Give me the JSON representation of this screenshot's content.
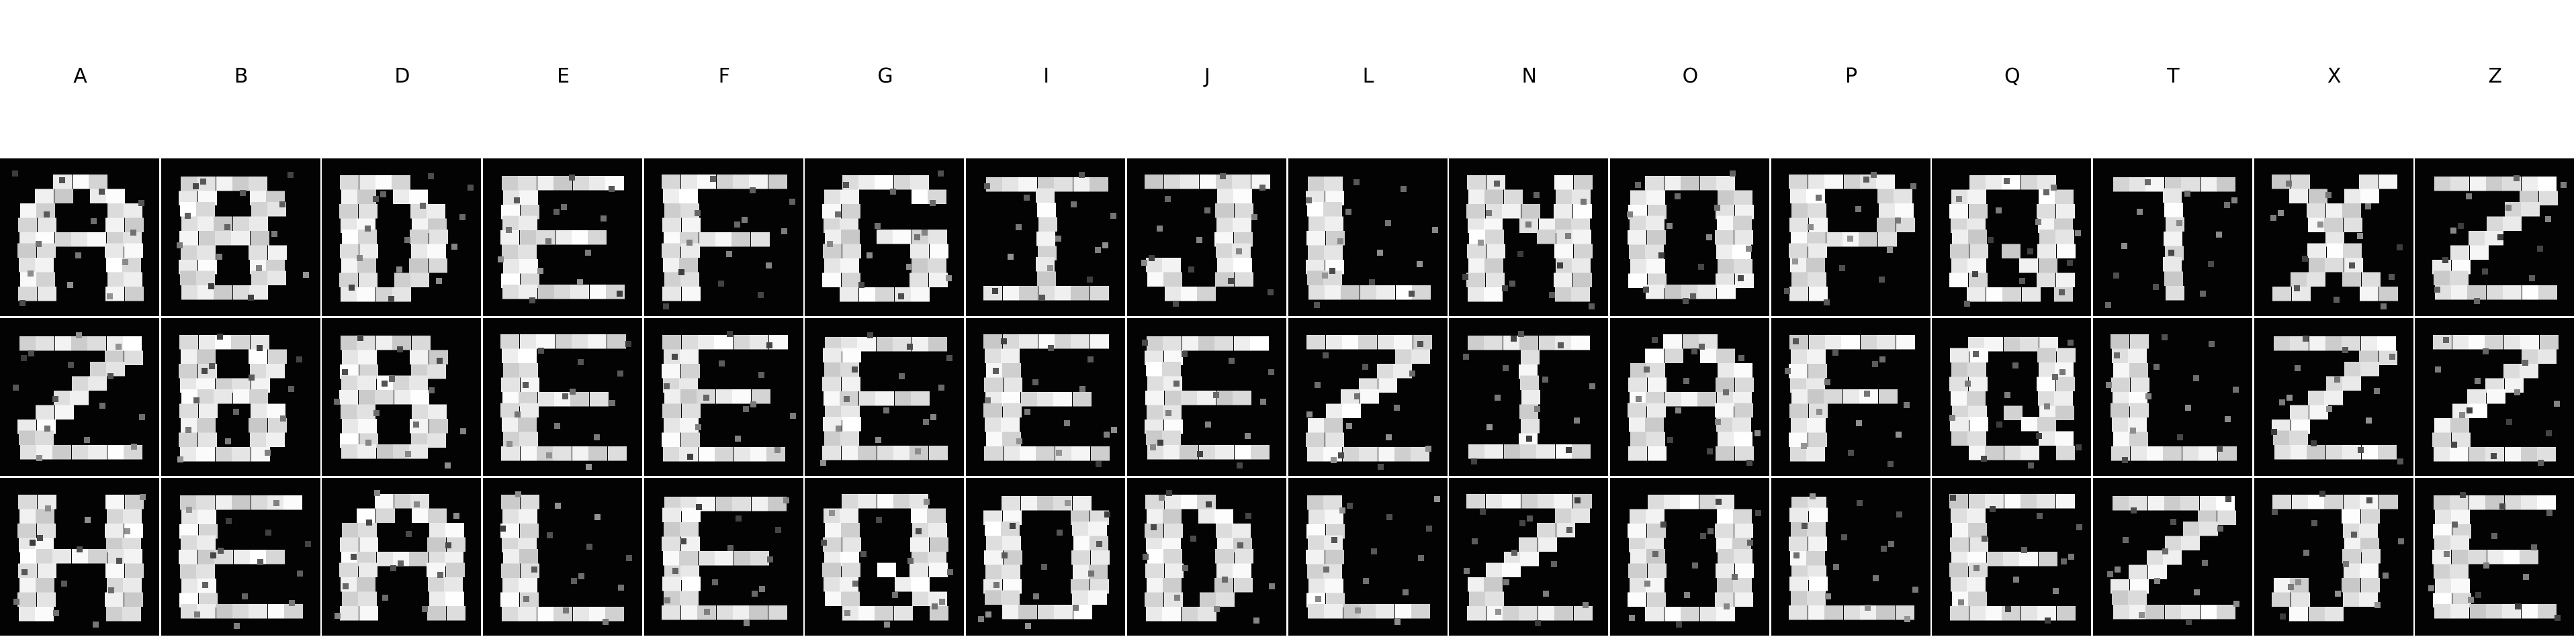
{
  "columns": [
    "A",
    "B",
    "D",
    "E",
    "F",
    "G",
    "I",
    "J",
    "L",
    "N",
    "O",
    "P",
    "Q",
    "T",
    "X",
    "Z"
  ],
  "rows": 3,
  "colors": {
    "background": "#ffffff",
    "tile_background": "#030303",
    "stroke": "#f2f2f2",
    "label": "#000000"
  },
  "tile_glyphs": [
    [
      "A",
      "B",
      "D",
      "E",
      "F",
      "G",
      "I",
      "J",
      "L",
      "N",
      "O",
      "P",
      "Q",
      "T",
      "X",
      "Z"
    ],
    [
      "Z",
      "B",
      "B",
      "E",
      "E",
      "E",
      "E",
      "E",
      "Z",
      "I",
      "A",
      "F",
      "Q",
      "L",
      "Z",
      "Z"
    ],
    [
      "H",
      "E",
      "A",
      "L",
      "E",
      "Q",
      "O",
      "D",
      "L",
      "Z",
      "O",
      "L",
      "E",
      "Z",
      "J",
      "E"
    ]
  ]
}
